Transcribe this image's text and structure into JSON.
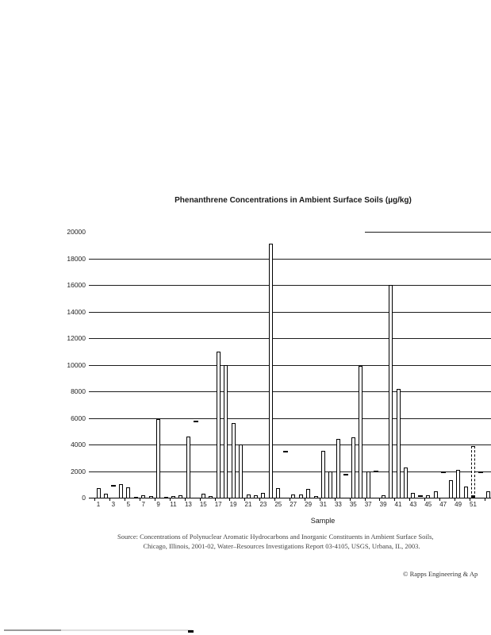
{
  "chart_data": {
    "type": "bar",
    "title": "Phenanthrene Concentrations in Ambient Surface Soils (µg/kg)",
    "xlabel": "Sample",
    "ylabel": "",
    "ylim": [
      0,
      20000
    ],
    "ytick_interval": 2000,
    "yticks": [
      0,
      2000,
      4000,
      6000,
      8000,
      10000,
      12000,
      14000,
      16000,
      18000,
      20000
    ],
    "xtick_labels": [
      "1",
      "3",
      "5",
      "7",
      "9",
      "11",
      "13",
      "15",
      "17",
      "19",
      "21",
      "23",
      "25",
      "27",
      "29",
      "31",
      "33",
      "35",
      "37",
      "39",
      "41",
      "43",
      "45",
      "47",
      "49",
      "51"
    ],
    "grid": "horizontal",
    "legend": "none",
    "categories": [
      1,
      2,
      3,
      4,
      5,
      6,
      7,
      8,
      9,
      10,
      11,
      12,
      13,
      14,
      15,
      16,
      17,
      18,
      19,
      20,
      21,
      22,
      23,
      24,
      25,
      26,
      27,
      28,
      29,
      30,
      31,
      32,
      33,
      34,
      35,
      36,
      37,
      38,
      39,
      40,
      41,
      42,
      43,
      44,
      45,
      46,
      47,
      48,
      49,
      50,
      51,
      52,
      53
    ],
    "values": [
      700,
      300,
      950,
      1000,
      800,
      50,
      150,
      100,
      5900,
      50,
      100,
      150,
      4600,
      5800,
      300,
      100,
      11000,
      10000,
      5600,
      4000,
      250,
      150,
      350,
      19100,
      700,
      3500,
      250,
      250,
      650,
      100,
      3500,
      1950,
      4400,
      1800,
      4550,
      9900,
      1950,
      2050,
      150,
      16000,
      8200,
      2250,
      350,
      150,
      150,
      500,
      2000,
      1300,
      2100,
      850,
      3900,
      1950,
      500
    ],
    "bar_styles": [
      "solid",
      "solid",
      "dash",
      "solid",
      "solid",
      "solid",
      "solid",
      "solid",
      "solid",
      "solid",
      "solid",
      "solid",
      "solid",
      "dash",
      "solid",
      "solid",
      "solid",
      "solid",
      "solid",
      "solid",
      "solid",
      "solid",
      "solid",
      "solid",
      "solid",
      "dash",
      "solid",
      "solid",
      "solid",
      "solid",
      "solid",
      "solid",
      "solid",
      "dash",
      "solid",
      "solid",
      "solid",
      "dash",
      "solid",
      "solid",
      "solid",
      "solid",
      "solid",
      "dash",
      "solid",
      "solid",
      "dash",
      "solid",
      "solid",
      "solid",
      "dashed",
      "dash",
      "solid"
    ]
  },
  "source": {
    "line1": "Source:  Concentrations of Polynuclear Aromatic Hydrocarbons and Inorganic Constituents in Ambient Surface Soils,",
    "line2": "Chicago, Illinois, 2001-02, Water–Resources Investigations Report 03-4105, USGS, Urbana, IL, 2003."
  },
  "attribution": "© Rapps Engineering & Ap"
}
